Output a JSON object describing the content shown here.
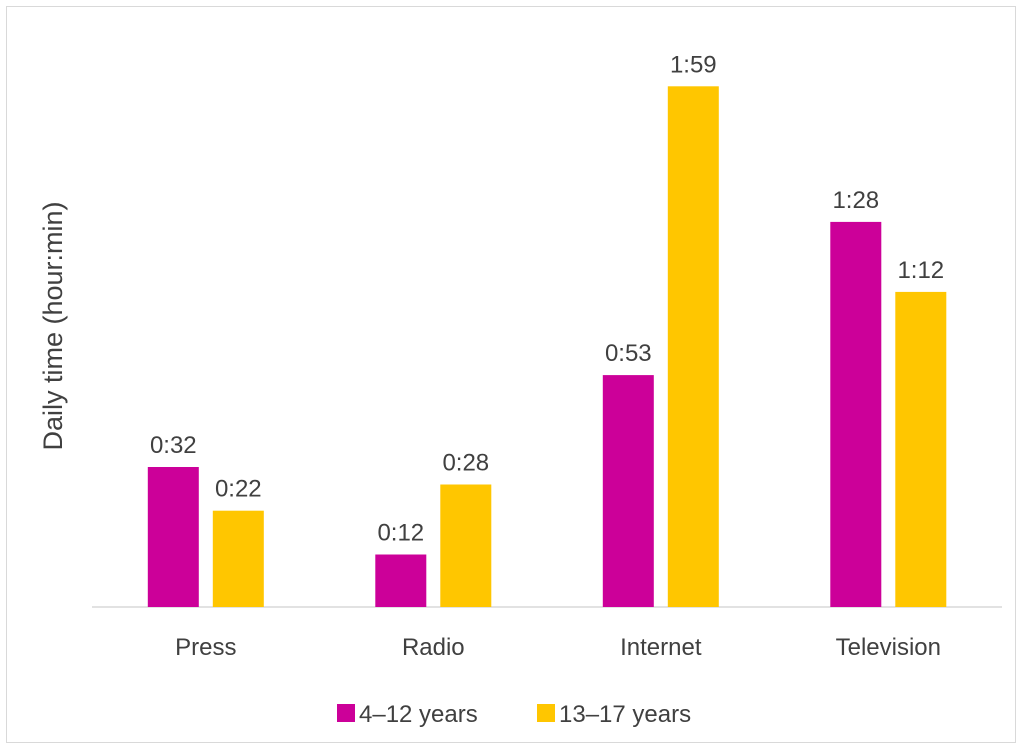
{
  "chart_data": {
    "type": "bar",
    "title": "",
    "xlabel": "",
    "ylabel": "Daily time (hour:min)",
    "categories": [
      "Press",
      "Radio",
      "Internet",
      "Television"
    ],
    "series": [
      {
        "name": "4–12 years",
        "color": "#cc0099",
        "values_minutes": [
          32,
          12,
          53,
          88
        ],
        "labels": [
          "0:32",
          "0:12",
          "0:53",
          "1:28"
        ]
      },
      {
        "name": "13–17 years",
        "color": "#ffc600",
        "values_minutes": [
          22,
          28,
          119,
          72
        ],
        "labels": [
          "0:22",
          "0:28",
          "1:59",
          "1:12"
        ]
      }
    ],
    "ylim": [
      0,
      125
    ],
    "y_axis_visible": false,
    "grid": false,
    "legend_position": "bottom",
    "axis_line_color": "#d9d9d9"
  }
}
